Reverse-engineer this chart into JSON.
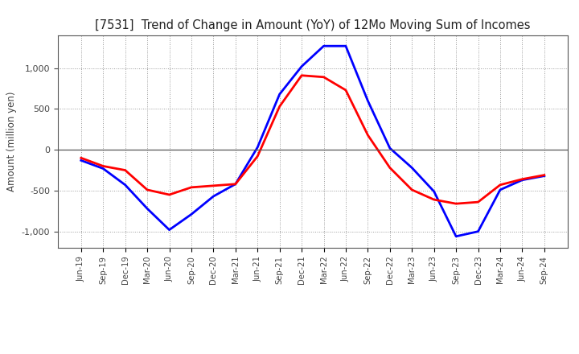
{
  "title": "[7531]  Trend of Change in Amount (YoY) of 12Mo Moving Sum of Incomes",
  "ylabel": "Amount (million yen)",
  "x_labels": [
    "Jun-19",
    "Sep-19",
    "Dec-19",
    "Mar-20",
    "Jun-20",
    "Sep-20",
    "Dec-20",
    "Mar-21",
    "Jun-21",
    "Sep-21",
    "Dec-21",
    "Mar-22",
    "Jun-22",
    "Sep-22",
    "Dec-22",
    "Mar-23",
    "Jun-23",
    "Sep-23",
    "Dec-23",
    "Mar-24",
    "Jun-24",
    "Sep-24"
  ],
  "ordinary_income": [
    -130,
    -230,
    -430,
    -720,
    -980,
    -790,
    -570,
    -420,
    30,
    680,
    1020,
    1270,
    1270,
    600,
    20,
    -220,
    -510,
    -1060,
    -1000,
    -490,
    -370,
    -320
  ],
  "net_income": [
    -100,
    -200,
    -250,
    -490,
    -550,
    -460,
    -440,
    -420,
    -80,
    530,
    910,
    890,
    730,
    180,
    -220,
    -490,
    -610,
    -660,
    -640,
    -430,
    -360,
    -310
  ],
  "ordinary_color": "#0000FF",
  "net_color": "#FF0000",
  "ylim": [
    -1200,
    1400
  ],
  "yticks": [
    -1000,
    -500,
    0,
    500,
    1000
  ],
  "background_color": "#FFFFFF"
}
